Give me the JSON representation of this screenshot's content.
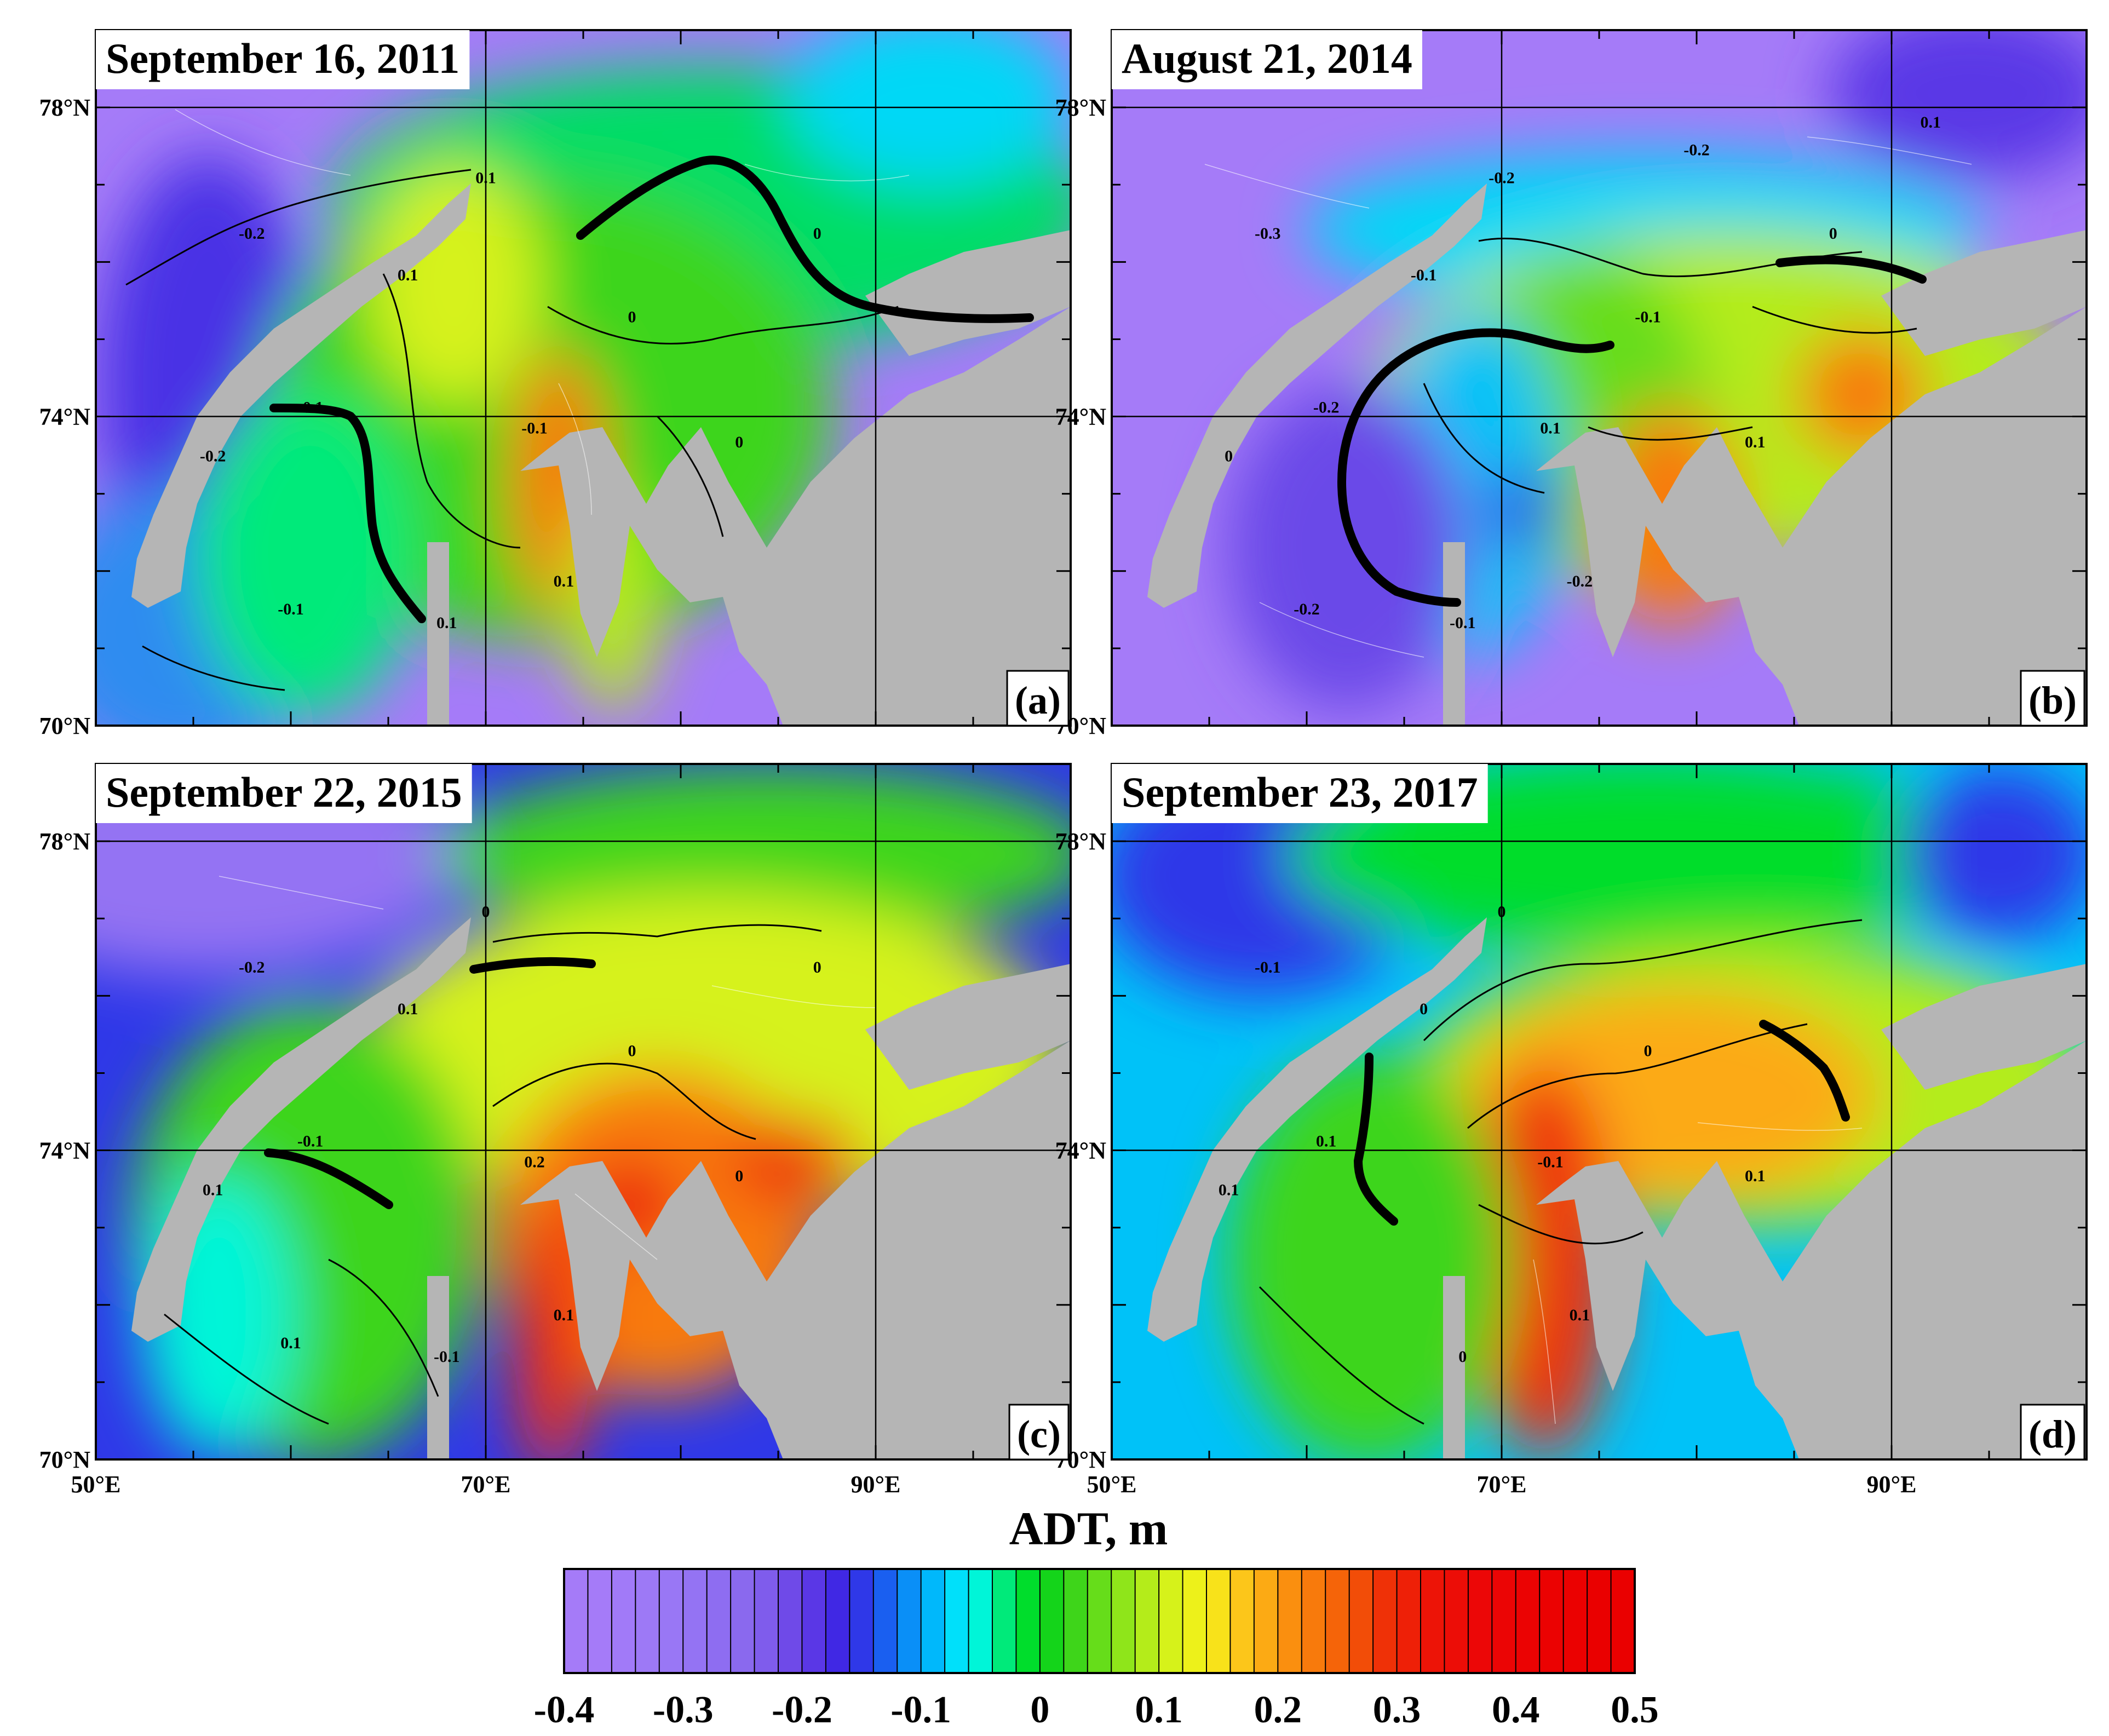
{
  "map": {
    "lon_range": [
      50,
      100
    ],
    "lat_range": [
      70,
      79
    ],
    "gridlines": {
      "lon": [
        70,
        90
      ],
      "lat": [
        74,
        78
      ]
    },
    "x_tick_labels": [
      "50°E",
      "70°E",
      "90°E"
    ],
    "y_tick_labels": [
      "70°N",
      "74°N",
      "78°N"
    ],
    "land_color": "#b5b5b5",
    "front_line_color": "#000000"
  },
  "panels": [
    {
      "id": "a",
      "date": "September 16, 2011",
      "letter": "(a)",
      "contour_labels": [
        "-0.2",
        "0.1",
        "-0.1",
        "0",
        "-0.2",
        "0.1",
        "-0.1",
        "0.1",
        "0",
        "0.1",
        "0",
        "-0.1"
      ]
    },
    {
      "id": "b",
      "date": "August 21, 2014",
      "letter": "(b)",
      "contour_labels": [
        "-0.3",
        "-0.2",
        "-0.2",
        "-0.1",
        "0",
        "-0.1",
        "0.1",
        "-0.2",
        "0.1",
        "-0.1",
        "0",
        "-0.2",
        "-0.2",
        "0.1"
      ]
    },
    {
      "id": "c",
      "date": "September 22, 2015",
      "letter": "(c)",
      "contour_labels": [
        "-0.2",
        "0",
        "-0.1",
        "0",
        "0.1",
        "0.1",
        "0.2",
        "0.1",
        "0",
        "-0.1",
        "0",
        "0.1"
      ]
    },
    {
      "id": "d",
      "date": "September 23, 2017",
      "letter": "(d)",
      "contour_labels": [
        "-0.1",
        "0",
        "0.1",
        "0",
        "0.1",
        "0",
        "-0.1",
        "0.1",
        "0.1",
        "0"
      ]
    }
  ],
  "colorbar": {
    "title": "ADT, m",
    "range": [
      -0.4,
      0.5
    ],
    "step": 0.02,
    "tick_labels": [
      "-0.4",
      "-0.3",
      "-0.2",
      "-0.1",
      "0",
      "0.1",
      "0.2",
      "0.3",
      "0.4",
      "0.5"
    ],
    "colors": [
      "#a57bf8",
      "#a57bf8",
      "#a17af8",
      "#9d79f6",
      "#9977f5",
      "#9473f3",
      "#8e6df1",
      "#8a69ee",
      "#7f5cec",
      "#6f4ae8",
      "#5a37e6",
      "#4028e4",
      "#2f38e8",
      "#1a5ff0",
      "#0a8ff7",
      "#00b8fb",
      "#00e0fa",
      "#00f5d8",
      "#00ea7a",
      "#00dd2c",
      "#14d41a",
      "#3ed51a",
      "#66dd1a",
      "#8fe51a",
      "#b4ec1a",
      "#d6f21a",
      "#edf11a",
      "#f8e21a",
      "#fcc61a",
      "#fcaa14",
      "#fa8f0f",
      "#f87a0c",
      "#f56409",
      "#f24d08",
      "#ef3107",
      "#ee2007",
      "#ed1407",
      "#ec0d07",
      "#ec0707",
      "#eb0505",
      "#eb0303",
      "#eb0202",
      "#eb0101",
      "#ea0000",
      "#ea0000"
    ]
  }
}
